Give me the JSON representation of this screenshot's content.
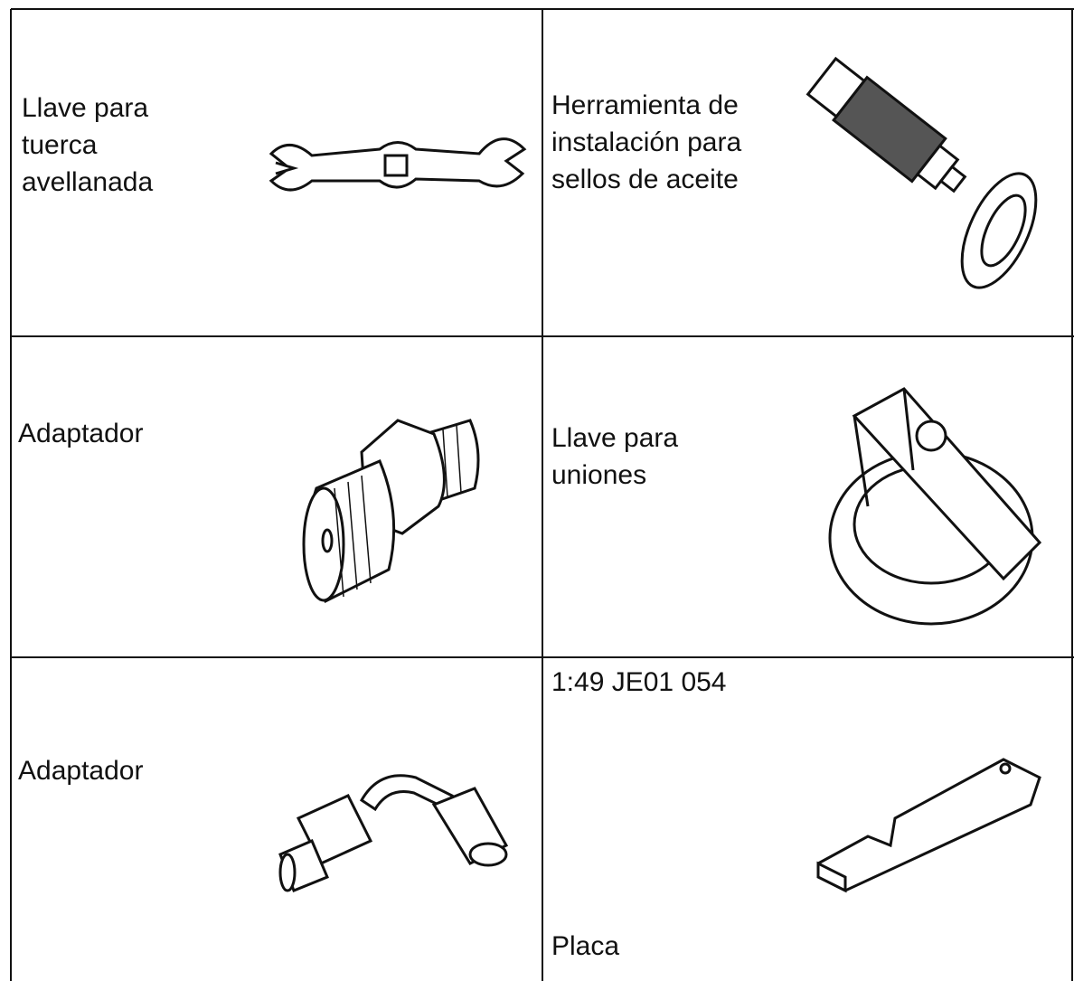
{
  "table": {
    "rows": [
      [
        {
          "label": [
            "Llave para",
            "tuerca",
            "avellanada"
          ]
        },
        {
          "label": [
            "Herramienta de",
            "instalación para",
            "sellos de aceite"
          ]
        }
      ],
      [
        {
          "label": [
            "Adaptador"
          ]
        },
        {
          "label": [
            "Llave para",
            "uniones"
          ]
        }
      ],
      [
        {
          "label": [
            "Adaptador"
          ]
        },
        {
          "code": "1:49 JE01 054",
          "label": [
            "Placa"
          ]
        }
      ]
    ]
  }
}
